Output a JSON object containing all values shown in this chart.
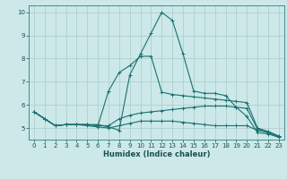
{
  "xlabel": "Humidex (Indice chaleur)",
  "bg_color": "#cce8e8",
  "grid_color": "#b0d0d0",
  "line_color": "#1a7070",
  "xlim": [
    -0.5,
    23.5
  ],
  "ylim": [
    4.5,
    10.3
  ],
  "xticks": [
    0,
    1,
    2,
    3,
    4,
    5,
    6,
    7,
    8,
    9,
    10,
    11,
    12,
    13,
    14,
    15,
    16,
    17,
    18,
    19,
    20,
    21,
    22,
    23
  ],
  "yticks": [
    5,
    6,
    7,
    8,
    9,
    10
  ],
  "series": [
    {
      "x": [
        0,
        1,
        2,
        3,
        4,
        5,
        6,
        7,
        8,
        9,
        10,
        11,
        12,
        13,
        14,
        15,
        16,
        17,
        18,
        19,
        20,
        21,
        22,
        23
      ],
      "y": [
        5.7,
        5.4,
        5.1,
        5.15,
        5.15,
        5.15,
        5.15,
        5.05,
        4.9,
        7.3,
        8.2,
        9.1,
        10.0,
        9.65,
        8.2,
        6.6,
        6.5,
        6.5,
        6.4,
        5.9,
        5.5,
        4.8,
        4.75,
        4.6
      ]
    },
    {
      "x": [
        0,
        1,
        2,
        3,
        4,
        5,
        6,
        7,
        8,
        9,
        10,
        11,
        12,
        13,
        14,
        15,
        16,
        17,
        18,
        19,
        20,
        21,
        22,
        23
      ],
      "y": [
        5.7,
        5.4,
        5.1,
        5.15,
        5.15,
        5.15,
        5.1,
        6.6,
        7.4,
        7.7,
        8.1,
        8.1,
        6.55,
        6.45,
        6.4,
        6.35,
        6.3,
        6.25,
        6.2,
        6.15,
        6.1,
        5.0,
        4.85,
        4.65
      ]
    },
    {
      "x": [
        0,
        1,
        2,
        3,
        4,
        5,
        6,
        7,
        8,
        9,
        10,
        11,
        12,
        13,
        14,
        15,
        16,
        17,
        18,
        19,
        20,
        21,
        22,
        23
      ],
      "y": [
        5.7,
        5.4,
        5.1,
        5.15,
        5.15,
        5.15,
        5.1,
        5.1,
        5.4,
        5.55,
        5.65,
        5.7,
        5.75,
        5.8,
        5.85,
        5.9,
        5.95,
        5.95,
        5.95,
        5.9,
        5.85,
        4.95,
        4.85,
        4.65
      ]
    },
    {
      "x": [
        0,
        1,
        2,
        3,
        4,
        5,
        6,
        7,
        8,
        9,
        10,
        11,
        12,
        13,
        14,
        15,
        16,
        17,
        18,
        19,
        20,
        21,
        22,
        23
      ],
      "y": [
        5.7,
        5.4,
        5.1,
        5.15,
        5.15,
        5.1,
        5.05,
        5.0,
        5.1,
        5.2,
        5.3,
        5.3,
        5.3,
        5.3,
        5.25,
        5.2,
        5.15,
        5.1,
        5.1,
        5.1,
        5.1,
        4.9,
        4.8,
        4.6
      ]
    }
  ]
}
